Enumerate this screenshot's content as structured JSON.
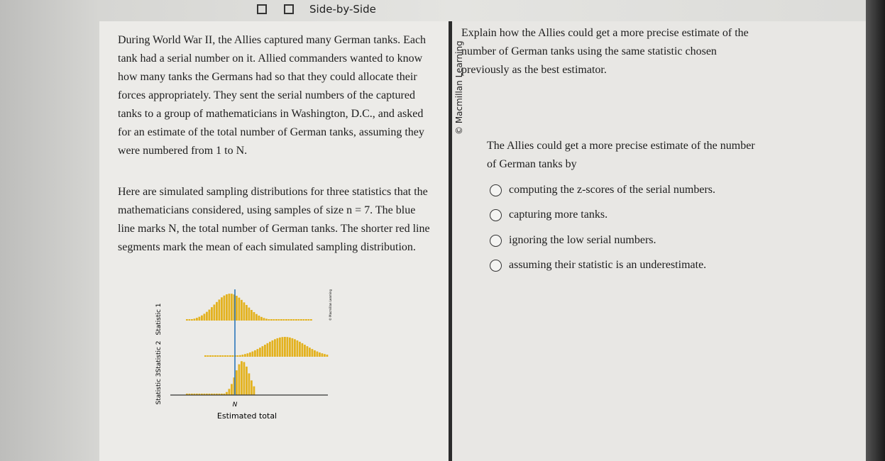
{
  "header": {
    "title": "Side-by-Side"
  },
  "passage": {
    "paragraphs": [
      "During World War II, the Allies captured many German tanks. Each tank had a serial number on it. Allied commanders wanted to know how many tanks the Germans had so that they could allocate their forces appropriately. They sent the serial numbers of the captured tanks to a group of mathematicians in Washington, D.C., and asked for an estimate of the total number of German tanks, assuming they were numbered from 1 to N.",
      "Here are simulated sampling distributions for three statistics that the mathematicians considered, using samples of size n = 7. The blue line marks N, the total number of German tanks. The shorter red line segments mark the mean of each simulated sampling distribution."
    ]
  },
  "figure": {
    "row_labels": [
      "Statistic 1",
      "Statistic 2",
      "Statistic 3"
    ],
    "marker": "N",
    "x_label": "Estimated total",
    "credit": "© Macmillan Learning"
  },
  "credit": "© Macmillan Learning",
  "question": {
    "prompt": "Explain how the Allies could get a more precise estimate of the number of German tanks using the same statistic chosen previously as the best estimator.",
    "stem": "The Allies could get a more precise estimate of the number of German tanks by",
    "options": [
      "computing the z-scores of the serial numbers.",
      "capturing more tanks.",
      "ignoring the low serial numbers.",
      "assuming their statistic is an underestimate."
    ]
  }
}
